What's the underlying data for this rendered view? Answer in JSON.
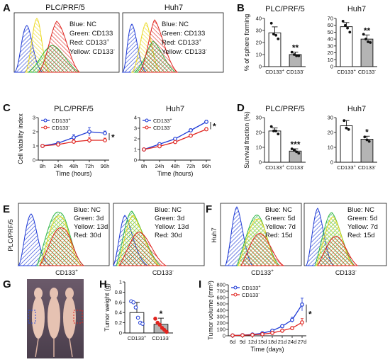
{
  "colors": {
    "blue": "#1f3bd6",
    "red": "#e0241f",
    "green": "#33b84a",
    "yellow": "#ecd920",
    "gray": "#b4b4b4",
    "black": "#111111"
  },
  "panels": {
    "A": {
      "letter": "A",
      "left": {
        "title": "PLC/PRF/5",
        "legend": [
          {
            "label": "Blue: NC"
          },
          {
            "label": "Green: CD133"
          },
          {
            "label": "Red: CD133",
            "sup": "+"
          },
          {
            "label": "Yellow: CD133",
            "sup": "-"
          }
        ]
      },
      "right": {
        "title": "Huh7",
        "legend": [
          {
            "label": "Blue: NC"
          },
          {
            "label": "Green: CD133"
          },
          {
            "label": "Red: CD133",
            "sup": "+"
          },
          {
            "label": "Yellow: CD133",
            "sup": "-"
          }
        ]
      }
    },
    "E": {
      "letter": "E",
      "ylabel": "PLC/PRF/5",
      "left": {
        "xlabel": "CD133",
        "xsup": "+",
        "legend": [
          "Blue: NC",
          "Green: 3d",
          "Yellow: 13d",
          "Red: 30d"
        ]
      },
      "right": {
        "xlabel": "CD133",
        "xsup": "-",
        "legend": [
          "Blue: NC",
          "Green: 3d",
          "Yellow: 13d",
          "Red: 30d"
        ]
      }
    },
    "F": {
      "letter": "F",
      "ylabel": "Huh7",
      "left": {
        "xlabel": "CD133",
        "xsup": "+",
        "legend": [
          "Blue: NC",
          "Green: 5d",
          "Yellow: 7d",
          "Red: 15d"
        ]
      },
      "right": {
        "xlabel": "CD133",
        "xsup": "-",
        "legend": [
          "Blue: NC",
          "Green: 5d",
          "Yellow: 7d",
          "Red: 15d"
        ]
      }
    },
    "G": {
      "letter": "G"
    }
  },
  "chart_data": [
    {
      "panel": "B",
      "type": "bar",
      "title": "PLC/PRF/5",
      "ylabel": "% of sphere forming",
      "ylim": [
        0,
        40
      ],
      "yticks": [
        0,
        10,
        20,
        30,
        40
      ],
      "categories": [
        {
          "label": "CD133",
          "sup": "+"
        },
        {
          "label": "CD133",
          "sup": "-"
        }
      ],
      "values": [
        28,
        10
      ],
      "errors": [
        5,
        2
      ],
      "significance": [
        "",
        "**"
      ],
      "points": [
        [
          36,
          27,
          26,
          23
        ],
        [
          12,
          10,
          9,
          9
        ]
      ]
    },
    {
      "panel": "B",
      "type": "bar",
      "title": "Huh7",
      "ylim": [
        0,
        70
      ],
      "yticks": [
        0,
        10,
        20,
        30,
        40,
        50,
        60,
        70
      ],
      "categories": [
        {
          "label": "CD133",
          "sup": "+"
        },
        {
          "label": "CD133",
          "sup": "-"
        }
      ],
      "values": [
        58,
        40
      ],
      "errors": [
        6,
        6
      ],
      "significance": [
        "",
        "**"
      ],
      "points": [
        [
          66,
          60,
          56,
          50
        ],
        [
          47,
          40,
          36,
          35
        ]
      ]
    },
    {
      "panel": "C",
      "type": "line",
      "title": "PLC/PRF/5",
      "xlabel": "Time (hours)",
      "ylabel": "Cell viability index",
      "ylim": [
        0,
        3
      ],
      "yticks": [
        0,
        1,
        2,
        3
      ],
      "x": [
        "8h",
        "24h",
        "48h",
        "72h",
        "96h"
      ],
      "series": [
        {
          "name": "CD133",
          "sup": "+",
          "color": "#1f3bd6",
          "values": [
            1.0,
            1.2,
            1.6,
            2.0,
            1.9
          ],
          "errors": [
            0.05,
            0.1,
            0.2,
            0.3,
            0.15
          ]
        },
        {
          "name": "CD133",
          "sup": "-",
          "color": "#e0241f",
          "values": [
            1.0,
            1.1,
            1.3,
            1.4,
            1.4
          ],
          "errors": [
            0.05,
            0.1,
            0.15,
            0.2,
            0.15
          ]
        }
      ],
      "significance": "*"
    },
    {
      "panel": "C",
      "type": "line",
      "title": "Huh7",
      "xlabel": "Time (hours)",
      "ylim": [
        0,
        4
      ],
      "yticks": [
        0,
        1,
        2,
        3,
        4
      ],
      "x": [
        "8h",
        "24h",
        "48h",
        "72h",
        "96h"
      ],
      "series": [
        {
          "name": "CD133",
          "sup": "+",
          "color": "#1f3bd6",
          "values": [
            1.0,
            1.5,
            2.0,
            2.8,
            3.6
          ],
          "errors": [
            0.05,
            0.1,
            0.1,
            0.15,
            0.15
          ]
        },
        {
          "name": "CD133",
          "sup": "-",
          "color": "#e0241f",
          "values": [
            1.0,
            1.3,
            1.7,
            2.3,
            2.9
          ],
          "errors": [
            0.05,
            0.08,
            0.1,
            0.15,
            0.15
          ]
        }
      ],
      "significance": "*"
    },
    {
      "panel": "D",
      "type": "bar",
      "title": "PLC/PRF/5",
      "ylabel": "Survival fraction (%)",
      "ylim": [
        0,
        30
      ],
      "yticks": [
        0,
        10,
        20,
        30
      ],
      "categories": [
        {
          "label": "CD133",
          "sup": "+"
        },
        {
          "label": "CD133",
          "sup": "-"
        }
      ],
      "values": [
        21,
        7.5
      ],
      "errors": [
        2,
        1.5
      ],
      "significance": [
        "",
        "***"
      ],
      "points": [
        [
          24,
          21,
          21,
          19
        ],
        [
          9,
          8,
          7,
          6
        ]
      ]
    },
    {
      "panel": "D",
      "type": "bar",
      "title": "Huh7",
      "ylim": [
        0,
        30
      ],
      "yticks": [
        0,
        10,
        20,
        30
      ],
      "categories": [
        {
          "label": "CD133",
          "sup": "+"
        },
        {
          "label": "CD133",
          "sup": "-"
        }
      ],
      "values": [
        24.5,
        15.5
      ],
      "errors": [
        3.5,
        2
      ],
      "significance": [
        "",
        "*"
      ],
      "points": [
        [
          28,
          23,
          22
        ],
        [
          17,
          15,
          14
        ]
      ]
    },
    {
      "panel": "H",
      "type": "bar",
      "ylabel": "Tumor weight (g)",
      "ylim": [
        0,
        1.0
      ],
      "yticks": [
        0,
        0.2,
        0.4,
        0.6,
        0.8,
        1.0
      ],
      "categories": [
        {
          "label": "CD133",
          "sup": "+"
        },
        {
          "label": "CD133",
          "sup": "-"
        }
      ],
      "values": [
        0.4,
        0.17
      ],
      "errors": [
        0.2,
        0.12
      ],
      "significance": [
        "",
        "*"
      ],
      "point_colors": [
        "#1f3bd6",
        "#e0241f"
      ],
      "points": [
        [
          0.62,
          0.6,
          0.5,
          0.3,
          0.2,
          0.18
        ],
        [
          0.28,
          0.2,
          0.16,
          0.1,
          0.06,
          0.02
        ]
      ]
    },
    {
      "panel": "I",
      "type": "line",
      "xlabel": "Time (days)",
      "ylabel": "Tumor volume (mm³)",
      "ylim": [
        0,
        800
      ],
      "yticks": [
        0,
        100,
        200,
        300,
        400,
        500,
        600,
        700,
        800
      ],
      "x": [
        "6d",
        "9d",
        "12d",
        "15d",
        "18d",
        "21d",
        "24d",
        "27d"
      ],
      "series": [
        {
          "name": "CD133",
          "sup": "+",
          "color": "#1f3bd6",
          "values": [
            5,
            10,
            20,
            40,
            80,
            150,
            250,
            490
          ],
          "errors": [
            2,
            3,
            5,
            10,
            15,
            25,
            40,
            100
          ]
        },
        {
          "name": "CD133",
          "sup": "-",
          "color": "#e0241f",
          "values": [
            5,
            8,
            15,
            25,
            45,
            80,
            120,
            210
          ],
          "errors": [
            2,
            3,
            4,
            6,
            10,
            15,
            25,
            60
          ]
        }
      ],
      "significance": "*"
    }
  ]
}
